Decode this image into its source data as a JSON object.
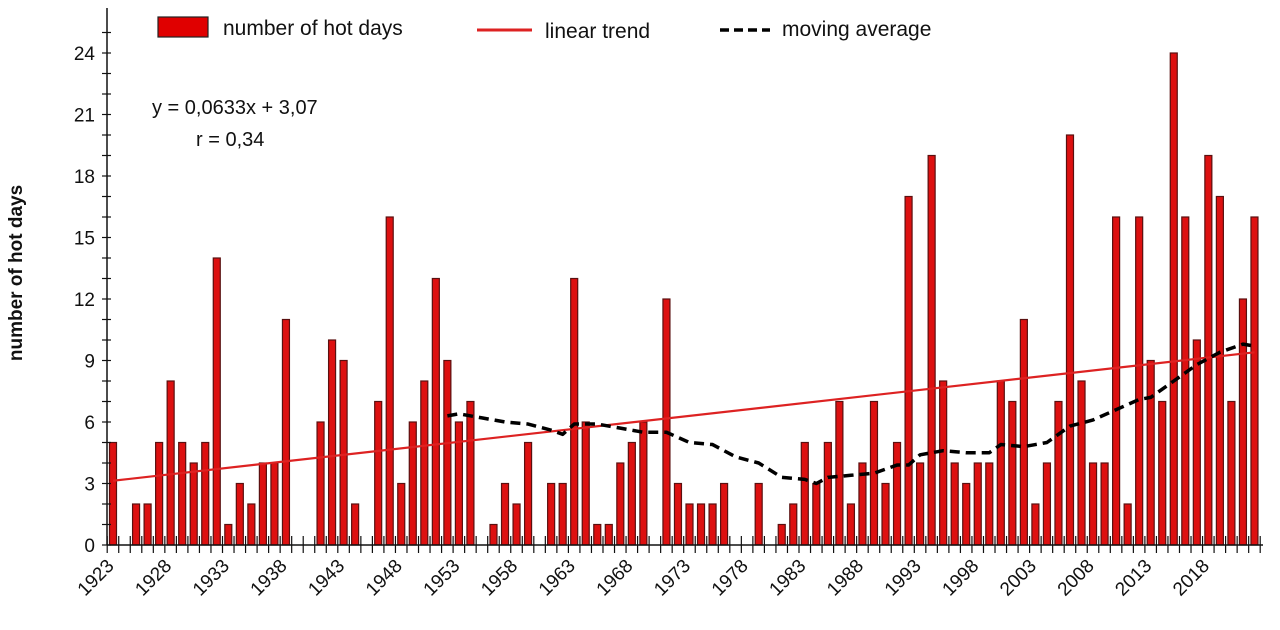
{
  "chart_data": {
    "type": "bar",
    "title": "",
    "xlabel": "",
    "ylabel": "number of hot days",
    "ylim": [
      0,
      25
    ],
    "yticks": [
      0,
      3,
      6,
      9,
      12,
      15,
      18,
      21,
      24
    ],
    "xtick_labels": [
      "1923",
      "1928",
      "1933",
      "1938",
      "1943",
      "1948",
      "1953",
      "1958",
      "1963",
      "1968",
      "1973",
      "1978",
      "1983",
      "1988",
      "1993",
      "1998",
      "2003",
      "2008",
      "2013",
      "2018"
    ],
    "grid": false,
    "legend_position": "top",
    "x_start": 1923,
    "x_end": 2022,
    "series": [
      {
        "name": "number of hot days",
        "type": "bar",
        "color": "#dd1010",
        "values": [
          5,
          0,
          2,
          2,
          5,
          8,
          5,
          4,
          5,
          14,
          1,
          3,
          2,
          4,
          4,
          11,
          0,
          0,
          6,
          10,
          9,
          2,
          0,
          7,
          16,
          3,
          6,
          8,
          13,
          9,
          6,
          7,
          0,
          1,
          3,
          2,
          5,
          0,
          3,
          3,
          13,
          6,
          1,
          1,
          4,
          5,
          6,
          0,
          12,
          3,
          2,
          2,
          2,
          3,
          0,
          0,
          3,
          0,
          1,
          2,
          5,
          3,
          5,
          7,
          2,
          4,
          7,
          3,
          5,
          17,
          4,
          19,
          8,
          4,
          3,
          4,
          4,
          8,
          7,
          11,
          2,
          4,
          7,
          20,
          8,
          4,
          4,
          16,
          2,
          16,
          9,
          7,
          24,
          16,
          10,
          19,
          17,
          7,
          12,
          16
        ]
      },
      {
        "name": "linear trend",
        "type": "line",
        "color": "#dd2222",
        "slope": 0.0633,
        "intercept": 3.07
      },
      {
        "name": "moving average",
        "type": "line",
        "style": "dashed",
        "color": "#000000",
        "x": [
          1952,
          1953,
          1955,
          1957,
          1959,
          1961,
          1962,
          1963,
          1965,
          1967,
          1969,
          1971,
          1973,
          1975,
          1977,
          1979,
          1981,
          1983,
          1984,
          1985,
          1987,
          1989,
          1991,
          1992,
          1993,
          1995,
          1997,
          1999,
          2000,
          2002,
          2004,
          2006,
          2008,
          2010,
          2012,
          2013,
          2015,
          2017,
          2019,
          2021,
          2022
        ],
        "values": [
          6.3,
          6.4,
          6.2,
          6.0,
          5.9,
          5.6,
          5.4,
          5.9,
          5.9,
          5.7,
          5.5,
          5.5,
          5.0,
          4.9,
          4.3,
          4.0,
          3.3,
          3.2,
          3.0,
          3.3,
          3.4,
          3.5,
          3.9,
          3.9,
          4.4,
          4.6,
          4.5,
          4.5,
          4.9,
          4.8,
          5.0,
          5.8,
          6.1,
          6.6,
          7.1,
          7.2,
          8.0,
          8.8,
          9.4,
          9.8,
          9.7
        ]
      }
    ],
    "annotations": {
      "equation": "y = 0,0633x + 3,07",
      "r": "r  = 0,34"
    }
  }
}
